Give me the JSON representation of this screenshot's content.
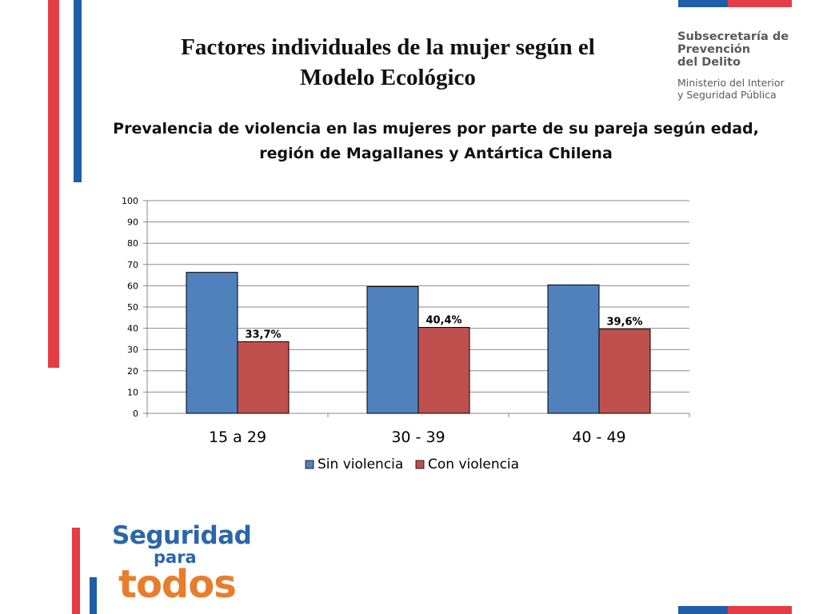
{
  "slide": {
    "title_lines": [
      "Factores individuales de la mujer según el",
      "Modelo Ecológico"
    ]
  },
  "logo_top": {
    "line1": "Subsecretaría de",
    "line2": "Prevención",
    "line3": "del Delito",
    "line4": "Ministerio del Interior",
    "line5": "y Seguridad Pública"
  },
  "logo_bottom": {
    "word1": "Seguridad",
    "word2": "para",
    "word3": "todos",
    "colors": {
      "blue": "#2b66a9",
      "orange": "#e87d2c"
    }
  },
  "colors": {
    "red": "#e63c46",
    "blue": "#1f5ea9",
    "bar_blue": "#4f81bd",
    "bar_red": "#c0504d"
  },
  "chart_data": {
    "type": "bar",
    "title_lines": [
      "Prevalencia de violencia en las mujeres por parte de su pareja según edad,",
      "región de Magallanes y Antártica Chilena"
    ],
    "categories": [
      "15 a 29",
      "30 - 39",
      "40 - 49"
    ],
    "series": [
      {
        "name": "Sin violencia",
        "values": [
          66.3,
          59.6,
          60.4
        ],
        "color": "#4f81bd",
        "labels": [
          "",
          "",
          ""
        ]
      },
      {
        "name": "Con violencia",
        "values": [
          33.7,
          40.4,
          39.6
        ],
        "color": "#c0504d",
        "labels": [
          "33,7%",
          "40,4%",
          "39,6%"
        ]
      }
    ],
    "ylim": [
      0,
      100
    ],
    "yticks": [
      0,
      10,
      20,
      30,
      40,
      50,
      60,
      70,
      80,
      90,
      100
    ],
    "grid": true,
    "legend": "bottom"
  }
}
